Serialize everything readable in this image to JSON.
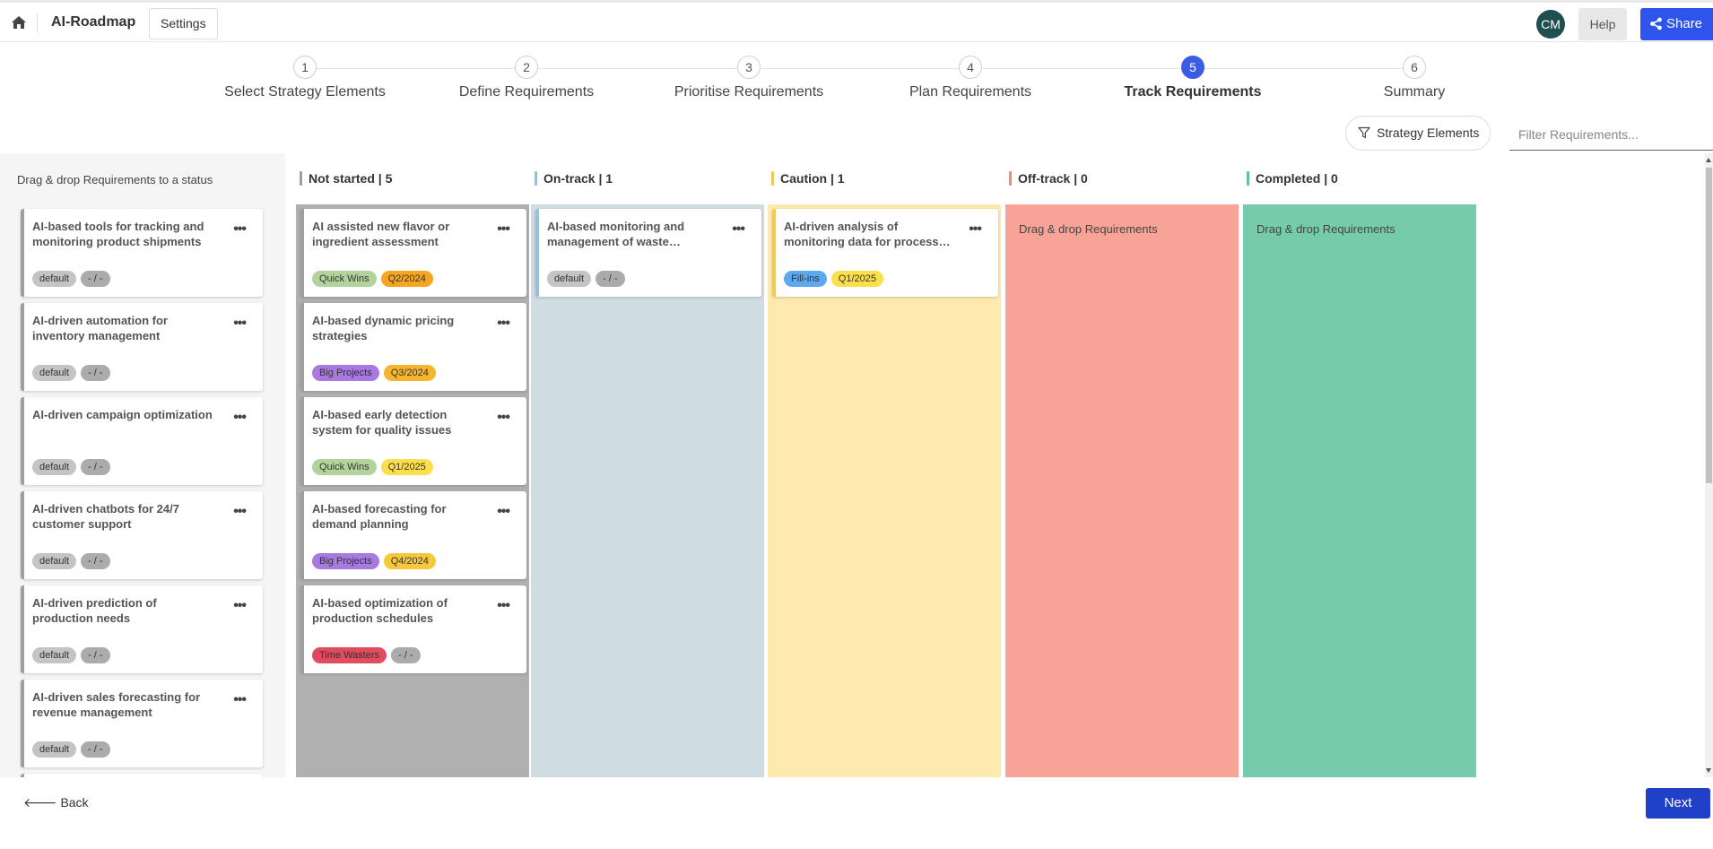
{
  "app": {
    "title": "AI-Roadmap",
    "settings_label": "Settings",
    "avatar_initials": "CM",
    "help_label": "Help",
    "share_label": "Share"
  },
  "stepper": {
    "steps": [
      {
        "number": "1",
        "label": "Select Strategy Elements",
        "active": false
      },
      {
        "number": "2",
        "label": "Define Requirements",
        "active": false
      },
      {
        "number": "3",
        "label": "Prioritise Requirements",
        "active": false
      },
      {
        "number": "4",
        "label": "Plan Requirements",
        "active": false
      },
      {
        "number": "5",
        "label": "Track Requirements",
        "active": true
      },
      {
        "number": "6",
        "label": "Summary",
        "active": false
      }
    ]
  },
  "filters": {
    "strategy_label": "Strategy Elements",
    "search_placeholder": "Filter Requirements..."
  },
  "backlog": {
    "hint": "Drag & drop Requirements to a status",
    "cards": [
      {
        "title": "AI-based tools for tracking and monitoring product shipments",
        "tags": [
          {
            "text": "default",
            "color": "#c4c4c4"
          },
          {
            "text": "- / -",
            "color": "#ababab"
          }
        ]
      },
      {
        "title": "AI-driven automation for inventory management",
        "tags": [
          {
            "text": "default",
            "color": "#c4c4c4"
          },
          {
            "text": "- / -",
            "color": "#ababab"
          }
        ]
      },
      {
        "title": "AI-driven campaign optimization",
        "tags": [
          {
            "text": "default",
            "color": "#c4c4c4"
          },
          {
            "text": "- / -",
            "color": "#ababab"
          }
        ]
      },
      {
        "title": "AI-driven chatbots for 24/7 customer support",
        "tags": [
          {
            "text": "default",
            "color": "#c4c4c4"
          },
          {
            "text": "- / -",
            "color": "#ababab"
          }
        ]
      },
      {
        "title": "AI-driven prediction of production needs",
        "tags": [
          {
            "text": "default",
            "color": "#c4c4c4"
          },
          {
            "text": "- / -",
            "color": "#ababab"
          }
        ]
      },
      {
        "title": "AI-driven sales forecasting for revenue management",
        "tags": [
          {
            "text": "default",
            "color": "#c4c4c4"
          },
          {
            "text": "- / -",
            "color": "#ababab"
          }
        ]
      },
      {
        "title": "",
        "tags": []
      }
    ]
  },
  "columns": [
    {
      "name": "Not started",
      "count": "5",
      "header": "Not started | 5",
      "bar_color": "#9e9e9e",
      "bg_color": "#b0b0b0",
      "drop_hint": "",
      "cards": [
        {
          "title": "AI assisted new flavor or ingredient assessment",
          "tags": [
            {
              "text": "Quick Wins",
              "color": "#b3d39c"
            },
            {
              "text": "Q2/2024",
              "color": "#f6a623"
            }
          ]
        },
        {
          "title": "AI-based dynamic pricing strategies",
          "tags": [
            {
              "text": "Big Projects",
              "color": "#a879df"
            },
            {
              "text": "Q3/2024",
              "color": "#f7b52e"
            }
          ]
        },
        {
          "title": "AI-based early detection system for quality issues",
          "tags": [
            {
              "text": "Quick Wins",
              "color": "#b3d39c"
            },
            {
              "text": "Q1/2025",
              "color": "#fbe04c"
            }
          ]
        },
        {
          "title": "AI-based forecasting for demand planning",
          "tags": [
            {
              "text": "Big Projects",
              "color": "#a879df"
            },
            {
              "text": "Q4/2024",
              "color": "#f7c93a"
            }
          ]
        },
        {
          "title": "AI-based optimization of production schedules",
          "tags": [
            {
              "text": "Time Wasters",
              "color": "#e04c5e"
            },
            {
              "text": "- / -",
              "color": "#ababab"
            }
          ]
        }
      ]
    },
    {
      "name": "On-track",
      "count": "1",
      "header": "On-track | 1",
      "bar_color": "#9bbfd3",
      "bg_color": "#cfdde3",
      "drop_hint": "",
      "cards": [
        {
          "title": "AI-based monitoring and management of waste…",
          "tags": [
            {
              "text": "default",
              "color": "#c4c4c4"
            },
            {
              "text": "- / -",
              "color": "#ababab"
            }
          ]
        }
      ]
    },
    {
      "name": "Caution",
      "count": "1",
      "header": "Caution | 1",
      "bar_color": "#f0c75a",
      "bg_color": "#feeaae",
      "drop_hint": "",
      "cards": [
        {
          "title": "AI-driven analysis of monitoring data for process…",
          "tags": [
            {
              "text": "Fill-ins",
              "color": "#5ea8f0"
            },
            {
              "text": "Q1/2025",
              "color": "#fbe04c"
            }
          ]
        }
      ]
    },
    {
      "name": "Off-track",
      "count": "0",
      "header": "Off-track | 0",
      "bar_color": "#f08a7c",
      "bg_color": "#f7a397",
      "drop_hint": "Drag & drop Requirements",
      "cards": []
    },
    {
      "name": "Completed",
      "count": "0",
      "header": "Completed | 0",
      "bar_color": "#5fc3a0",
      "bg_color": "#77cbad",
      "drop_hint": "Drag & drop Requirements",
      "cards": []
    }
  ],
  "footer": {
    "back_label": "Back",
    "next_label": "Next"
  },
  "colors": {
    "accent": "#2f54eb",
    "active_step": "#3b5ce5",
    "next_button": "#2140c8"
  }
}
